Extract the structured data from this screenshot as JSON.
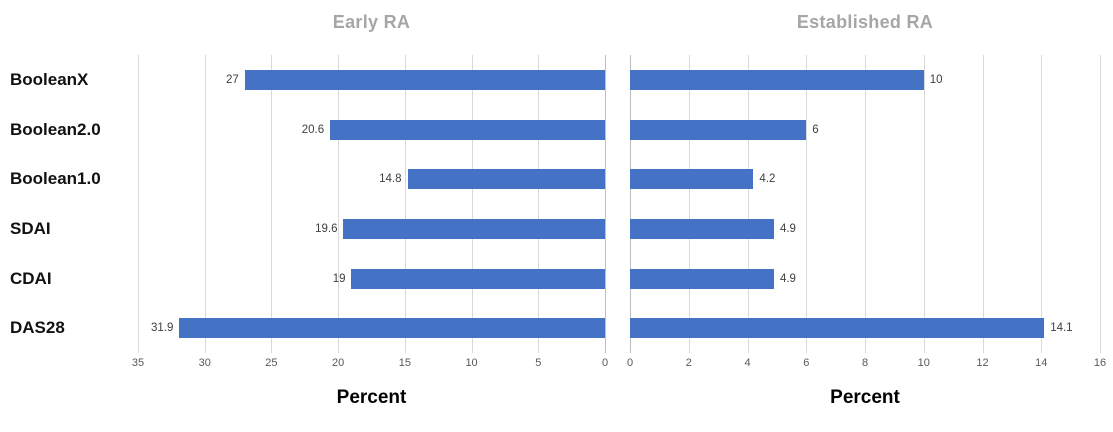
{
  "chart_data": {
    "type": "bar",
    "orientation": "horizontal",
    "categories": [
      "BooleanX",
      "Boolean2.0",
      "Boolean1.0",
      "SDAI",
      "CDAI",
      "DAS28"
    ],
    "bar_color": "#4472c4",
    "grid": true,
    "gridline_color": "#d9d9d9",
    "axis_line_color": "#bfbfbf",
    "panels": [
      {
        "title": "Early RA",
        "xlabel": "Percent",
        "values": [
          27,
          20.6,
          14.8,
          19.6,
          19,
          31.9
        ],
        "value_labels": [
          "27",
          "20.6",
          "14.8",
          "19.6",
          "19",
          "31.9"
        ],
        "xlim": [
          35,
          0
        ],
        "ticks": [
          35,
          30,
          25,
          20,
          15,
          10,
          5,
          0
        ],
        "direction": "right-to-left",
        "legend": "none"
      },
      {
        "title": "Established RA",
        "xlabel": "Percent",
        "values": [
          10,
          6,
          4.2,
          4.9,
          4.9,
          14.1
        ],
        "value_labels": [
          "10",
          "6",
          "4.2",
          "4.9",
          "4.9",
          "14.1"
        ],
        "xlim": [
          0,
          16
        ],
        "ticks": [
          0,
          2,
          4,
          6,
          8,
          10,
          12,
          14,
          16
        ],
        "direction": "left-to-right",
        "legend": "none"
      }
    ]
  }
}
